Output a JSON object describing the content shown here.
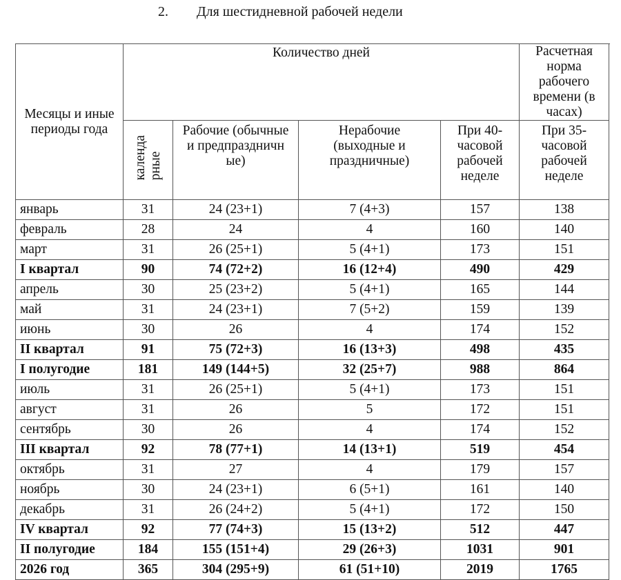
{
  "title": {
    "number": "2.",
    "text": "Для шестидневной рабочей недели"
  },
  "header": {
    "periods": "Месяцы и иные периоды года",
    "days_group": "Количество дней",
    "norm_group": "Расчетная норма рабочего времени (в часах)",
    "calendar": "календа рные",
    "working": "Рабочие (обычные и предпраздничн ые)",
    "nonworking": "Нерабочие (выходные и праздничные)",
    "h40": "При 40-часовой рабочей неделе",
    "h35": "При 35-часовой рабочей неделе"
  },
  "rows": [
    {
      "period": "январь",
      "calendar": "31",
      "working": "24 (23+1)",
      "nonworking": "7 (4+3)",
      "h40": "157",
      "h35": "138",
      "bold": false
    },
    {
      "period": "февраль",
      "calendar": "28",
      "working": "24",
      "nonworking": "4",
      "h40": "160",
      "h35": "140",
      "bold": false
    },
    {
      "period": "март",
      "calendar": "31",
      "working": "26 (25+1)",
      "nonworking": "5 (4+1)",
      "h40": "173",
      "h35": "151",
      "bold": false
    },
    {
      "period": "I квартал",
      "calendar": "90",
      "working": "74 (72+2)",
      "nonworking": "16 (12+4)",
      "h40": "490",
      "h35": "429",
      "bold": true
    },
    {
      "period": "апрель",
      "calendar": "30",
      "working": "25 (23+2)",
      "nonworking": "5 (4+1)",
      "h40": "165",
      "h35": "144",
      "bold": false
    },
    {
      "period": "май",
      "calendar": "31",
      "working": "24 (23+1)",
      "nonworking": "7 (5+2)",
      "h40": "159",
      "h35": "139",
      "bold": false
    },
    {
      "period": "июнь",
      "calendar": "30",
      "working": "26",
      "nonworking": "4",
      "h40": "174",
      "h35": "152",
      "bold": false
    },
    {
      "period": "II квартал",
      "calendar": "91",
      "working": "75 (72+3)",
      "nonworking": "16 (13+3)",
      "h40": "498",
      "h35": "435",
      "bold": true
    },
    {
      "period": "I полугодие",
      "calendar": "181",
      "working": "149 (144+5)",
      "nonworking": "32 (25+7)",
      "h40": "988",
      "h35": "864",
      "bold": true
    },
    {
      "period": "июль",
      "calendar": "31",
      "working": "26 (25+1)",
      "nonworking": "5 (4+1)",
      "h40": "173",
      "h35": "151",
      "bold": false
    },
    {
      "period": "август",
      "calendar": "31",
      "working": "26",
      "nonworking": "5",
      "h40": "172",
      "h35": "151",
      "bold": false
    },
    {
      "period": "сентябрь",
      "calendar": "30",
      "working": "26",
      "nonworking": "4",
      "h40": "174",
      "h35": "152",
      "bold": false
    },
    {
      "period": "III квартал",
      "calendar": "92",
      "working": "78 (77+1)",
      "nonworking": "14 (13+1)",
      "h40": "519",
      "h35": "454",
      "bold": true
    },
    {
      "period": "октябрь",
      "calendar": "31",
      "working": "27",
      "nonworking": "4",
      "h40": "179",
      "h35": "157",
      "bold": false
    },
    {
      "period": "ноябрь",
      "calendar": "30",
      "working": "24 (23+1)",
      "nonworking": "6 (5+1)",
      "h40": "161",
      "h35": "140",
      "bold": false
    },
    {
      "period": "декабрь",
      "calendar": "31",
      "working": "26 (24+2)",
      "nonworking": "5 (4+1)",
      "h40": "172",
      "h35": "150",
      "bold": false
    },
    {
      "period": "IV квартал",
      "calendar": "92",
      "working": "77 (74+3)",
      "nonworking": "15 (13+2)",
      "h40": "512",
      "h35": "447",
      "bold": true
    },
    {
      "period": "II полугодие",
      "calendar": "184",
      "working": "155 (151+4)",
      "nonworking": "29 (26+3)",
      "h40": "1031",
      "h35": "901",
      "bold": true
    },
    {
      "period": "2026 год",
      "calendar": "365",
      "working": "304 (295+9)",
      "nonworking": "61 (51+10)",
      "h40": "2019",
      "h35": "1765",
      "bold": true
    }
  ]
}
